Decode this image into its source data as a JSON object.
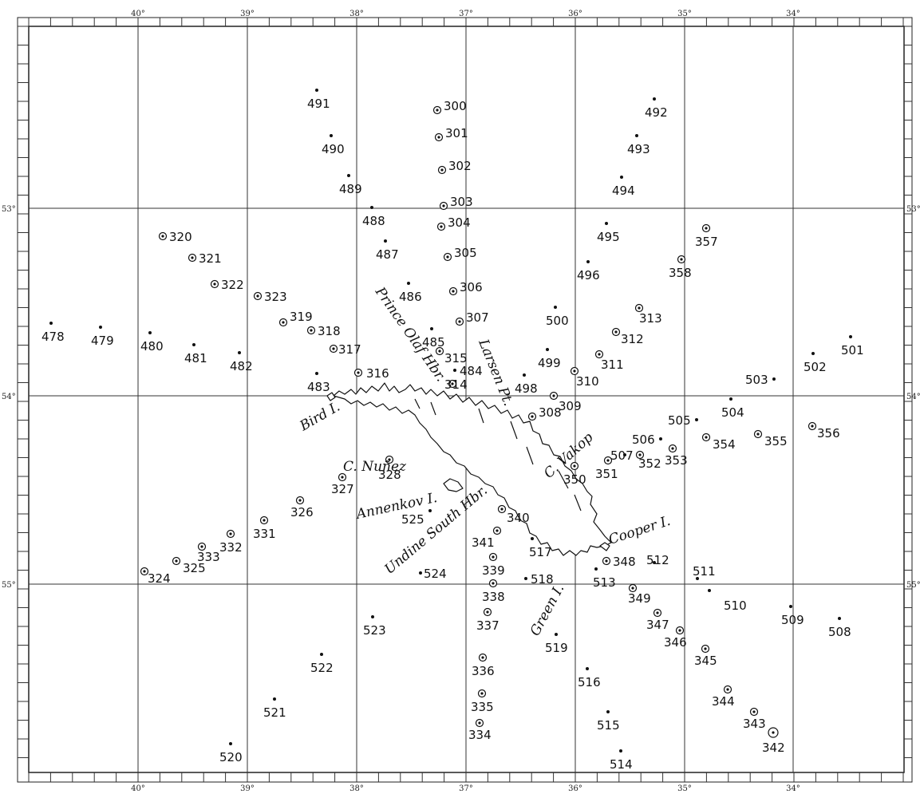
{
  "map": {
    "top_longitudes": [
      "40°",
      "39°",
      "38°",
      "37°",
      "36°",
      "35°",
      "34°"
    ],
    "bottom_longitudes": [
      "40°",
      "39°",
      "38°",
      "37°",
      "36°",
      "35°",
      "34°"
    ],
    "left_latitudes": [
      "53°",
      "54°",
      "55°"
    ],
    "right_latitudes": [
      "53°",
      "54°",
      "55°"
    ],
    "place_names": [
      "Prince Olaf Hbr.",
      "Larsen Pt.",
      "Bird I.",
      "C. Nuñez",
      "C. Vakop",
      "Annenkov I.",
      "Undine South Hbr.",
      "Cooper I.",
      "Green I."
    ],
    "stations": {
      "dot": [
        "491",
        "490",
        "489",
        "488",
        "487",
        "486",
        "485",
        "484",
        "483",
        "482",
        "481",
        "480",
        "479",
        "478",
        "492",
        "493",
        "494",
        "495",
        "496",
        "500",
        "499",
        "498",
        "501",
        "502",
        "503",
        "504",
        "505",
        "506",
        "507",
        "525",
        "524",
        "523",
        "522",
        "521",
        "520",
        "517",
        "518",
        "519",
        "516",
        "515",
        "514",
        "513",
        "512",
        "511",
        "510",
        "509",
        "508"
      ],
      "ring": [
        "300",
        "301",
        "302",
        "303",
        "304",
        "305",
        "306",
        "307",
        "308",
        "309",
        "310",
        "311",
        "312",
        "313",
        "314",
        "315",
        "316",
        "317",
        "318",
        "319",
        "320",
        "321",
        "322",
        "323",
        "324",
        "325",
        "326",
        "327",
        "328",
        "331",
        "332",
        "333",
        "334",
        "335",
        "336",
        "337",
        "338",
        "339",
        "340",
        "341",
        "342",
        "343",
        "344",
        "345",
        "346",
        "347",
        "348",
        "349",
        "350",
        "351",
        "352",
        "353",
        "354",
        "355",
        "356",
        "357",
        "358"
      ]
    }
  }
}
